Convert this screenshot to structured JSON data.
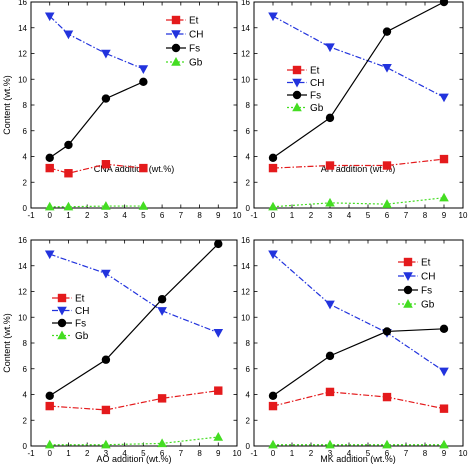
{
  "chart_data": [
    {
      "type": "line",
      "xlabel": "CNA addition (wt.%)",
      "ylabel": "Content (wt.%)",
      "xlim": [
        -1,
        10
      ],
      "ylim": [
        0,
        16
      ],
      "xticks": [
        -1,
        0,
        1,
        2,
        3,
        4,
        5,
        6,
        7,
        8,
        9,
        10
      ],
      "yticks": [
        0,
        2,
        4,
        6,
        8,
        10,
        12,
        14,
        16
      ],
      "legend_position": "top-right",
      "series": [
        {
          "name": "Et",
          "color": "#e41a1c",
          "marker": "square",
          "line": "dash-dot",
          "x": [
            0,
            1,
            3,
            5
          ],
          "values": [
            3.1,
            2.7,
            3.4,
            3.1
          ]
        },
        {
          "name": "CH",
          "color": "#2233dd",
          "marker": "triangle-down",
          "line": "dash-dot",
          "x": [
            0,
            1,
            3,
            5
          ],
          "values": [
            14.9,
            13.5,
            12.0,
            10.8
          ]
        },
        {
          "name": "Fs",
          "color": "#000000",
          "marker": "circle",
          "line": "solid",
          "x": [
            0,
            1,
            3,
            5
          ],
          "values": [
            3.9,
            4.9,
            8.5,
            9.8
          ]
        },
        {
          "name": "Gb",
          "color": "#44dd22",
          "marker": "triangle-up",
          "line": "dotted",
          "x": [
            0,
            1,
            3,
            5
          ],
          "values": [
            0.1,
            0.1,
            0.15,
            0.15
          ]
        }
      ]
    },
    {
      "type": "line",
      "xlabel": "AH addition (wt.%)",
      "ylabel": "",
      "xlim": [
        -1,
        10
      ],
      "ylim": [
        0,
        16
      ],
      "xticks": [
        -1,
        0,
        1,
        2,
        3,
        4,
        5,
        6,
        7,
        8,
        9,
        10
      ],
      "yticks": [
        0,
        2,
        4,
        6,
        8,
        10,
        12,
        14,
        16
      ],
      "legend_position": "left",
      "series": [
        {
          "name": "Et",
          "color": "#e41a1c",
          "marker": "square",
          "line": "dash-dot",
          "x": [
            0,
            3,
            6,
            9
          ],
          "values": [
            3.1,
            3.3,
            3.3,
            3.8
          ]
        },
        {
          "name": "CH",
          "color": "#2233dd",
          "marker": "triangle-down",
          "line": "dash-dot",
          "x": [
            0,
            3,
            6,
            9
          ],
          "values": [
            14.9,
            12.5,
            10.9,
            8.6
          ]
        },
        {
          "name": "Fs",
          "color": "#000000",
          "marker": "circle",
          "line": "solid",
          "x": [
            0,
            3,
            6,
            9
          ],
          "values": [
            3.9,
            7.0,
            13.7,
            16.0
          ]
        },
        {
          "name": "Gb",
          "color": "#44dd22",
          "marker": "triangle-up",
          "line": "dotted",
          "x": [
            0,
            3,
            6,
            9
          ],
          "values": [
            0.1,
            0.4,
            0.3,
            0.8
          ]
        }
      ]
    },
    {
      "type": "line",
      "xlabel": "AO addition (wt.%)",
      "ylabel": "Content (wt.%)",
      "xlim": [
        -1,
        10
      ],
      "ylim": [
        0,
        16
      ],
      "xticks": [
        -1,
        0,
        1,
        2,
        3,
        4,
        5,
        6,
        7,
        8,
        9,
        10
      ],
      "yticks": [
        0,
        2,
        4,
        6,
        8,
        10,
        12,
        14,
        16
      ],
      "legend_position": "left",
      "series": [
        {
          "name": "Et",
          "color": "#e41a1c",
          "marker": "square",
          "line": "dash-dot",
          "x": [
            0,
            3,
            6,
            9
          ],
          "values": [
            3.1,
            2.8,
            3.7,
            4.3
          ]
        },
        {
          "name": "CH",
          "color": "#2233dd",
          "marker": "triangle-down",
          "line": "dash-dot",
          "x": [
            0,
            3,
            6,
            9
          ],
          "values": [
            14.9,
            13.4,
            10.5,
            8.8
          ]
        },
        {
          "name": "Fs",
          "color": "#000000",
          "marker": "circle",
          "line": "solid",
          "x": [
            0,
            3,
            6,
            9
          ],
          "values": [
            3.9,
            6.7,
            11.4,
            15.7
          ]
        },
        {
          "name": "Gb",
          "color": "#44dd22",
          "marker": "triangle-up",
          "line": "dotted",
          "x": [
            0,
            3,
            6,
            9
          ],
          "values": [
            0.1,
            0.1,
            0.2,
            0.7
          ]
        }
      ]
    },
    {
      "type": "line",
      "xlabel": "MK addition (wt.%)",
      "ylabel": "",
      "xlim": [
        -1,
        10
      ],
      "ylim": [
        0,
        16
      ],
      "xticks": [
        -1,
        0,
        1,
        2,
        3,
        4,
        5,
        6,
        7,
        8,
        9,
        10
      ],
      "yticks": [
        0,
        2,
        4,
        6,
        8,
        10,
        12,
        14,
        16
      ],
      "legend_position": "top-right",
      "series": [
        {
          "name": "Et",
          "color": "#e41a1c",
          "marker": "square",
          "line": "dash-dot",
          "x": [
            0,
            3,
            6,
            9
          ],
          "values": [
            3.1,
            4.2,
            3.8,
            2.9
          ]
        },
        {
          "name": "CH",
          "color": "#2233dd",
          "marker": "triangle-down",
          "line": "dash-dot",
          "x": [
            0,
            3,
            6,
            9
          ],
          "values": [
            14.9,
            11.0,
            8.8,
            5.8
          ]
        },
        {
          "name": "Fs",
          "color": "#000000",
          "marker": "circle",
          "line": "solid",
          "x": [
            0,
            3,
            6,
            9
          ],
          "values": [
            3.9,
            7.0,
            8.9,
            9.1
          ]
        },
        {
          "name": "Gb",
          "color": "#44dd22",
          "marker": "triangle-up",
          "line": "dotted",
          "x": [
            0,
            3,
            6,
            9
          ],
          "values": [
            0.1,
            0.1,
            0.1,
            0.1
          ]
        }
      ]
    }
  ]
}
